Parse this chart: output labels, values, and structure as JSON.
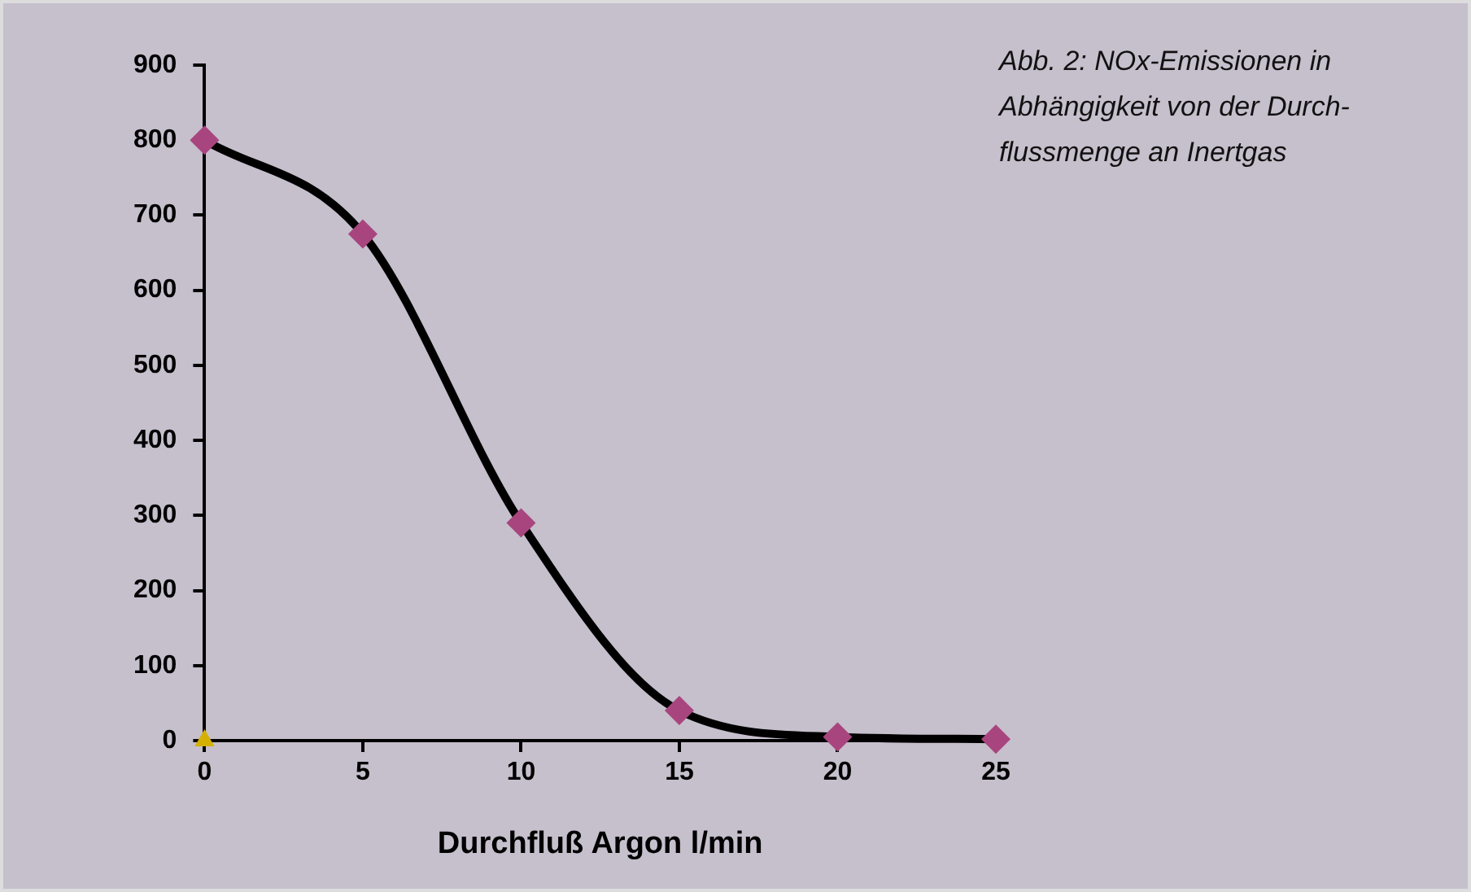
{
  "chart_data": {
    "type": "line",
    "xlabel": "Durchfluß Argon l/min",
    "xlim": [
      0,
      25
    ],
    "xticks": [
      0,
      5,
      10,
      15,
      20,
      25
    ],
    "ylim": [
      0,
      900
    ],
    "yticks": [
      0,
      100,
      200,
      300,
      400,
      500,
      600,
      700,
      800,
      900
    ],
    "series": [
      {
        "color": "#000000",
        "x": [
          0,
          5,
          10,
          15,
          20,
          25
        ],
        "values": [
          800,
          675,
          290,
          40,
          5,
          2
        ],
        "marker": "diamond",
        "colors": [
          "#a8457e",
          "#a8457e",
          "#a8457e",
          "#a8457e",
          "#a8457e",
          "#a8457e"
        ]
      },
      {
        "type": "scatter",
        "color": "#d4b000",
        "x": [
          0
        ],
        "values": [
          0
        ],
        "marker": "triangle"
      }
    ],
    "annotations": [
      "Abb. 2: NOx-Emissionen in\nAbhängigkeit von der Durch-\nflussmenge an Inertgas"
    ],
    "grid": false,
    "legend": false
  }
}
